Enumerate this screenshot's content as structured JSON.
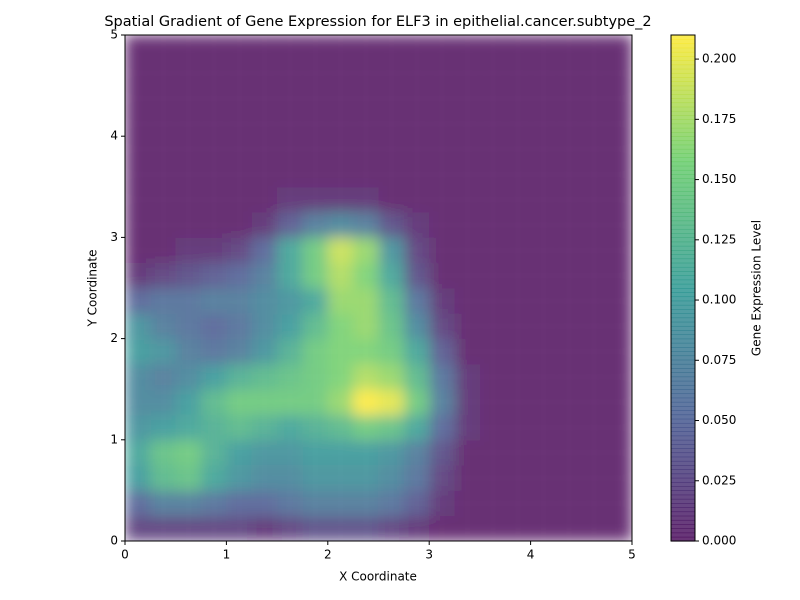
{
  "chart_data": {
    "type": "heatmap",
    "title": "Spatial Gradient of Gene Expression for ELF3 in epithelial.cancer.subtype_2",
    "x_label": "X Coordinate",
    "y_label": "Y Coordinate",
    "xlim": [
      0,
      5
    ],
    "ylim": [
      0,
      5
    ],
    "xticks": [
      0,
      1,
      2,
      3,
      4,
      5
    ],
    "yticks": [
      0,
      1,
      2,
      3,
      4,
      5
    ],
    "colormap": "viridis",
    "alpha": 0.8,
    "colorbar": {
      "label": "Gene Expression Level",
      "lim": [
        0,
        0.21
      ],
      "ticks": [
        {
          "value": 0,
          "label": "0.000"
        },
        {
          "value": 0.025,
          "label": "0.025"
        },
        {
          "value": 0.05,
          "label": "0.050"
        },
        {
          "value": 0.075,
          "label": "0.075"
        },
        {
          "value": 0.1,
          "label": "0.100"
        },
        {
          "value": 0.125,
          "label": "0.125"
        },
        {
          "value": 0.15,
          "label": "0.150"
        },
        {
          "value": 0.175,
          "label": "0.175"
        },
        {
          "value": 0.2,
          "label": "0.200"
        }
      ]
    },
    "values": [
      [
        0.02,
        0.02,
        0.02,
        0.02,
        0.02,
        0.01,
        0.02,
        0.03,
        0.03,
        0.03,
        0.02,
        0.01,
        0,
        0,
        0,
        0,
        0,
        0,
        0,
        0
      ],
      [
        0.05,
        0.07,
        0.07,
        0.06,
        0.05,
        0.05,
        0.06,
        0.07,
        0.07,
        0.07,
        0.06,
        0.04,
        0.01,
        0,
        0,
        0,
        0,
        0,
        0,
        0
      ],
      [
        0.1,
        0.13,
        0.14,
        0.11,
        0.09,
        0.08,
        0.08,
        0.09,
        0.09,
        0.09,
        0.08,
        0.06,
        0.02,
        0,
        0,
        0,
        0,
        0,
        0,
        0
      ],
      [
        0.11,
        0.14,
        0.15,
        0.12,
        0.1,
        0.09,
        0.09,
        0.1,
        0.1,
        0.1,
        0.09,
        0.07,
        0.03,
        0,
        0,
        0,
        0,
        0,
        0,
        0
      ],
      [
        0.09,
        0.1,
        0.11,
        0.12,
        0.13,
        0.12,
        0.11,
        0.12,
        0.13,
        0.15,
        0.14,
        0.11,
        0.05,
        0.01,
        0,
        0,
        0,
        0,
        0,
        0
      ],
      [
        0.08,
        0.08,
        0.1,
        0.13,
        0.15,
        0.15,
        0.15,
        0.15,
        0.17,
        0.21,
        0.2,
        0.15,
        0.07,
        0.01,
        0,
        0,
        0,
        0,
        0,
        0
      ],
      [
        0.08,
        0.07,
        0.08,
        0.1,
        0.12,
        0.13,
        0.14,
        0.15,
        0.16,
        0.18,
        0.17,
        0.13,
        0.06,
        0.01,
        0,
        0,
        0,
        0,
        0,
        0
      ],
      [
        0.1,
        0.09,
        0.07,
        0.06,
        0.07,
        0.09,
        0.12,
        0.15,
        0.16,
        0.16,
        0.15,
        0.11,
        0.04,
        0,
        0,
        0,
        0,
        0,
        0,
        0
      ],
      [
        0.09,
        0.07,
        0.06,
        0.05,
        0.06,
        0.08,
        0.1,
        0.13,
        0.16,
        0.17,
        0.14,
        0.08,
        0.02,
        0,
        0,
        0,
        0,
        0,
        0,
        0
      ],
      [
        0.05,
        0.06,
        0.06,
        0.07,
        0.07,
        0.08,
        0.09,
        0.11,
        0.17,
        0.17,
        0.13,
        0.06,
        0.01,
        0,
        0,
        0,
        0,
        0,
        0,
        0
      ],
      [
        0.01,
        0.02,
        0.03,
        0.04,
        0.05,
        0.07,
        0.11,
        0.15,
        0.18,
        0.16,
        0.11,
        0.03,
        0,
        0,
        0,
        0,
        0,
        0,
        0,
        0
      ],
      [
        0,
        0,
        0.01,
        0.01,
        0.02,
        0.05,
        0.11,
        0.15,
        0.19,
        0.17,
        0.09,
        0.02,
        0,
        0,
        0,
        0,
        0,
        0,
        0,
        0
      ],
      [
        0,
        0,
        0,
        0,
        0,
        0.01,
        0.04,
        0.07,
        0.08,
        0.07,
        0.03,
        0.01,
        0,
        0,
        0,
        0,
        0,
        0,
        0,
        0
      ],
      [
        0,
        0,
        0,
        0,
        0,
        0,
        0.01,
        0.01,
        0.01,
        0.01,
        0,
        0,
        0,
        0,
        0,
        0,
        0,
        0,
        0,
        0
      ],
      [
        0,
        0,
        0,
        0,
        0,
        0,
        0,
        0,
        0,
        0,
        0,
        0,
        0,
        0,
        0,
        0,
        0,
        0,
        0,
        0
      ],
      [
        0,
        0,
        0,
        0,
        0,
        0,
        0,
        0,
        0,
        0,
        0,
        0,
        0,
        0,
        0,
        0,
        0,
        0,
        0,
        0
      ],
      [
        0,
        0,
        0,
        0,
        0,
        0,
        0,
        0,
        0,
        0,
        0,
        0,
        0,
        0,
        0,
        0,
        0,
        0,
        0,
        0
      ],
      [
        0,
        0,
        0,
        0,
        0,
        0,
        0,
        0,
        0,
        0,
        0,
        0,
        0,
        0,
        0,
        0,
        0,
        0,
        0,
        0
      ],
      [
        0,
        0,
        0,
        0,
        0,
        0,
        0,
        0,
        0,
        0,
        0,
        0,
        0,
        0,
        0,
        0,
        0,
        0,
        0,
        0
      ],
      [
        0,
        0,
        0,
        0,
        0,
        0,
        0,
        0,
        0,
        0,
        0,
        0,
        0,
        0,
        0,
        0,
        0,
        0,
        0,
        0
      ]
    ]
  }
}
